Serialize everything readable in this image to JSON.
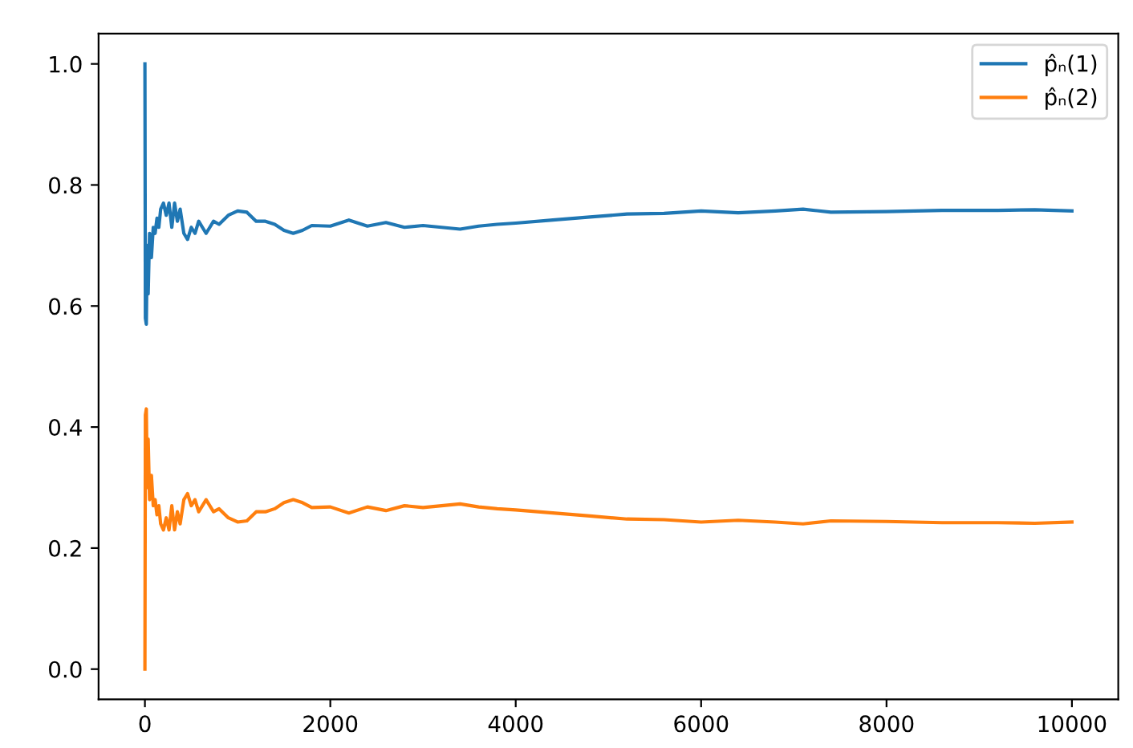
{
  "chart_data": {
    "type": "line",
    "xlim": [
      -500,
      10500
    ],
    "ylim": [
      -0.05,
      1.05
    ],
    "xticks": [
      0,
      2000,
      4000,
      6000,
      8000,
      10000
    ],
    "yticks": [
      {
        "value": 0,
        "label": "0.0"
      },
      {
        "value": 0.2,
        "label": "0.2"
      },
      {
        "value": 0.4,
        "label": "0.4"
      },
      {
        "value": 0.6,
        "label": "0.6"
      },
      {
        "value": 0.8,
        "label": "0.8"
      },
      {
        "value": 1,
        "label": "1.0"
      }
    ],
    "grid": false,
    "legend": "top right",
    "x": [
      0,
      5,
      15,
      25,
      35,
      50,
      70,
      90,
      110,
      130,
      150,
      170,
      200,
      230,
      260,
      290,
      320,
      350,
      380,
      420,
      460,
      500,
      540,
      580,
      620,
      660,
      700,
      740,
      800,
      900,
      1000,
      1100,
      1200,
      1300,
      1400,
      1500,
      1600,
      1700,
      1800,
      2000,
      2200,
      2400,
      2600,
      2800,
      3000,
      3200,
      3400,
      3600,
      3800,
      4000,
      4400,
      4800,
      5200,
      5600,
      6000,
      6400,
      6800,
      7100,
      7400,
      8000,
      8600,
      9200,
      9600,
      10000
    ],
    "series": [
      {
        "name": "p̂ₙ(1)",
        "color": "#1f77b4",
        "values": [
          1.0,
          0.58,
          0.57,
          0.7,
          0.62,
          0.72,
          0.68,
          0.73,
          0.72,
          0.745,
          0.73,
          0.76,
          0.77,
          0.75,
          0.77,
          0.73,
          0.77,
          0.74,
          0.76,
          0.72,
          0.71,
          0.73,
          0.72,
          0.74,
          0.73,
          0.72,
          0.73,
          0.74,
          0.735,
          0.75,
          0.757,
          0.755,
          0.74,
          0.74,
          0.735,
          0.725,
          0.72,
          0.725,
          0.733,
          0.732,
          0.742,
          0.732,
          0.738,
          0.73,
          0.733,
          0.73,
          0.727,
          0.732,
          0.735,
          0.737,
          0.742,
          0.747,
          0.752,
          0.753,
          0.757,
          0.754,
          0.757,
          0.76,
          0.755,
          0.756,
          0.758,
          0.758,
          0.759,
          0.757
        ]
      },
      {
        "name": "p̂ₙ(2)",
        "color": "#ff7f0e",
        "values": [
          0.0,
          0.42,
          0.43,
          0.3,
          0.38,
          0.28,
          0.32,
          0.27,
          0.28,
          0.255,
          0.27,
          0.24,
          0.23,
          0.25,
          0.23,
          0.27,
          0.23,
          0.26,
          0.24,
          0.28,
          0.29,
          0.27,
          0.28,
          0.26,
          0.27,
          0.28,
          0.27,
          0.26,
          0.265,
          0.25,
          0.243,
          0.245,
          0.26,
          0.26,
          0.265,
          0.275,
          0.28,
          0.275,
          0.267,
          0.268,
          0.258,
          0.268,
          0.262,
          0.27,
          0.267,
          0.27,
          0.273,
          0.268,
          0.265,
          0.263,
          0.258,
          0.253,
          0.248,
          0.247,
          0.243,
          0.246,
          0.243,
          0.24,
          0.245,
          0.244,
          0.242,
          0.242,
          0.241,
          0.243
        ]
      }
    ]
  }
}
